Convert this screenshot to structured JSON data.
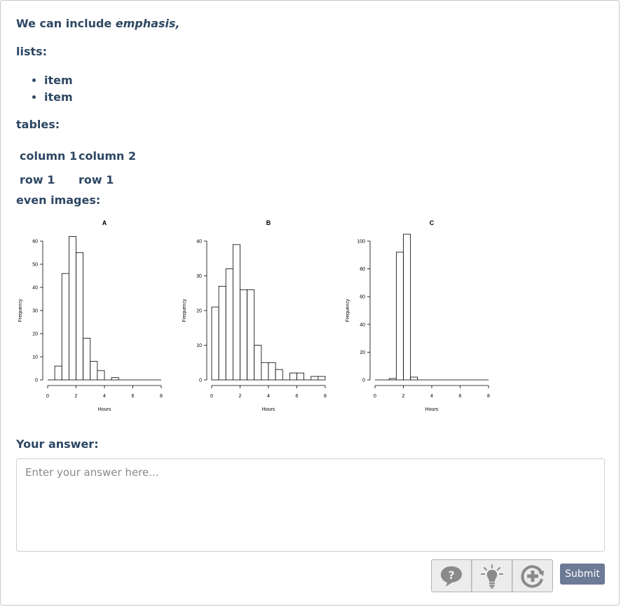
{
  "content": {
    "intro_prefix": "We can include ",
    "intro_emphasis": "emphasis,",
    "lists_label": "lists:",
    "list_items": [
      "item",
      "item"
    ],
    "tables_label": "tables:",
    "table": {
      "headers": [
        "column 1",
        "column 2"
      ],
      "rows": [
        [
          "row 1",
          "row 1"
        ]
      ]
    },
    "images_label": "even images:"
  },
  "chart_data": [
    {
      "type": "bar",
      "title": "A",
      "xlabel": "Hours",
      "ylabel": "Frequency",
      "xlim": [
        0,
        8
      ],
      "ylim": [
        0,
        60
      ],
      "xticks": [
        0,
        2,
        4,
        6,
        8
      ],
      "yticks": [
        0,
        10,
        20,
        30,
        40,
        50,
        60
      ],
      "bin_width": 0.5,
      "bins_start": [
        0,
        0.5,
        1,
        1.5,
        2,
        2.5,
        3,
        3.5,
        4,
        4.5,
        5,
        5.5,
        6,
        6.5,
        7,
        7.5
      ],
      "values": [
        0,
        6,
        46,
        62,
        55,
        18,
        8,
        4,
        0,
        1,
        0,
        0,
        0,
        0,
        0,
        0
      ]
    },
    {
      "type": "bar",
      "title": "B",
      "xlabel": "Hours",
      "ylabel": "Frequency",
      "xlim": [
        0,
        8
      ],
      "ylim": [
        0,
        40
      ],
      "xticks": [
        0,
        2,
        4,
        6,
        8
      ],
      "yticks": [
        0,
        10,
        20,
        30,
        40
      ],
      "bin_width": 0.5,
      "bins_start": [
        0,
        0.5,
        1,
        1.5,
        2,
        2.5,
        3,
        3.5,
        4,
        4.5,
        5,
        5.5,
        6,
        6.5,
        7,
        7.5
      ],
      "values": [
        21,
        27,
        32,
        39,
        26,
        26,
        10,
        5,
        5,
        3,
        0,
        2,
        2,
        0,
        1,
        1
      ]
    },
    {
      "type": "bar",
      "title": "C",
      "xlabel": "Hours",
      "ylabel": "Frequency",
      "xlim": [
        0,
        8
      ],
      "ylim": [
        0,
        100
      ],
      "xticks": [
        0,
        2,
        4,
        6,
        8
      ],
      "yticks": [
        0,
        20,
        40,
        60,
        80,
        100
      ],
      "bin_width": 0.5,
      "bins_start": [
        0,
        0.5,
        1,
        1.5,
        2,
        2.5,
        3,
        3.5,
        4,
        4.5,
        5,
        5.5,
        6,
        6.5,
        7,
        7.5
      ],
      "values": [
        0,
        0,
        1,
        92,
        105,
        2,
        0,
        0,
        0,
        0,
        0,
        0,
        0,
        0,
        0,
        0
      ]
    }
  ],
  "answer": {
    "label": "Your answer:",
    "placeholder": "Enter your answer here..."
  },
  "actions": {
    "icons": [
      "hint-help-icon",
      "lightbulb-icon",
      "add-circle-icon"
    ],
    "submit_label": "Submit"
  }
}
